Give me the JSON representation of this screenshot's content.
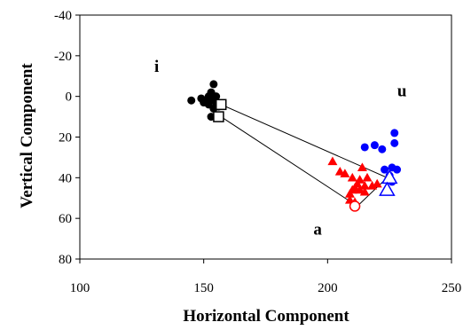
{
  "chart_data": {
    "type": "scatter",
    "xlabel": "Horizontal Component",
    "ylabel": "Vertical Component",
    "xlim": [
      100,
      250
    ],
    "ylim": [
      -40,
      80
    ],
    "y_axis_inverted": true,
    "x_ticks": [
      "100",
      "150",
      "200",
      "250"
    ],
    "y_ticks": [
      "-40",
      "-20",
      "0",
      "20",
      "40",
      "60",
      "80"
    ],
    "grid": false,
    "legend": "none",
    "annotations": [
      {
        "text": "i",
        "x": 131,
        "y": -12
      },
      {
        "text": "u",
        "x": 230,
        "y": 0
      },
      {
        "text": "a",
        "x": 196,
        "y": 68
      }
    ],
    "series": [
      {
        "marker": "circle-filled",
        "color": "#000000",
        "points": [
          [
            145,
            2
          ],
          [
            149,
            1
          ],
          [
            150,
            3
          ],
          [
            151,
            2
          ],
          [
            152,
            0
          ],
          [
            152,
            4
          ],
          [
            153,
            -2
          ],
          [
            153,
            2
          ],
          [
            154,
            6
          ],
          [
            154,
            -6
          ],
          [
            155,
            0
          ],
          [
            155,
            3
          ],
          [
            156,
            5
          ],
          [
            153,
            10
          ],
          [
            157,
            4
          ]
        ]
      },
      {
        "marker": "circle-filled",
        "color": "#0000ff",
        "points": [
          [
            215,
            25
          ],
          [
            219,
            24
          ],
          [
            222,
            26
          ],
          [
            227,
            18
          ],
          [
            227,
            23
          ],
          [
            223,
            36
          ],
          [
            226,
            35
          ],
          [
            228,
            36
          ],
          [
            225,
            39
          ],
          [
            226,
            42
          ]
        ]
      },
      {
        "marker": "triangle-filled",
        "color": "#ff0000",
        "points": [
          [
            202,
            32
          ],
          [
            205,
            37
          ],
          [
            207,
            38
          ],
          [
            214,
            35
          ],
          [
            210,
            40
          ],
          [
            213,
            41
          ],
          [
            212,
            43
          ],
          [
            215,
            44
          ],
          [
            211,
            45
          ],
          [
            210,
            46
          ],
          [
            213,
            46
          ],
          [
            209,
            48
          ],
          [
            215,
            47
          ],
          [
            218,
            44
          ],
          [
            220,
            43
          ],
          [
            216,
            40
          ],
          [
            209,
            51
          ],
          [
            211,
            52
          ]
        ]
      },
      {
        "marker": "square-open",
        "color": "#000000",
        "points": [
          [
            157,
            4
          ],
          [
            156,
            10
          ]
        ]
      },
      {
        "marker": "circle-open",
        "color": "#ff0000",
        "points": [
          [
            211,
            54
          ]
        ]
      },
      {
        "marker": "triangle-open",
        "color": "#0000ff",
        "points": [
          [
            225,
            40
          ],
          [
            224,
            46
          ]
        ]
      }
    ],
    "lines": [
      {
        "color": "#000000",
        "points": [
          [
            157,
            4
          ],
          [
            224,
            40
          ],
          [
            212,
            54
          ],
          [
            157,
            10
          ]
        ]
      }
    ]
  }
}
